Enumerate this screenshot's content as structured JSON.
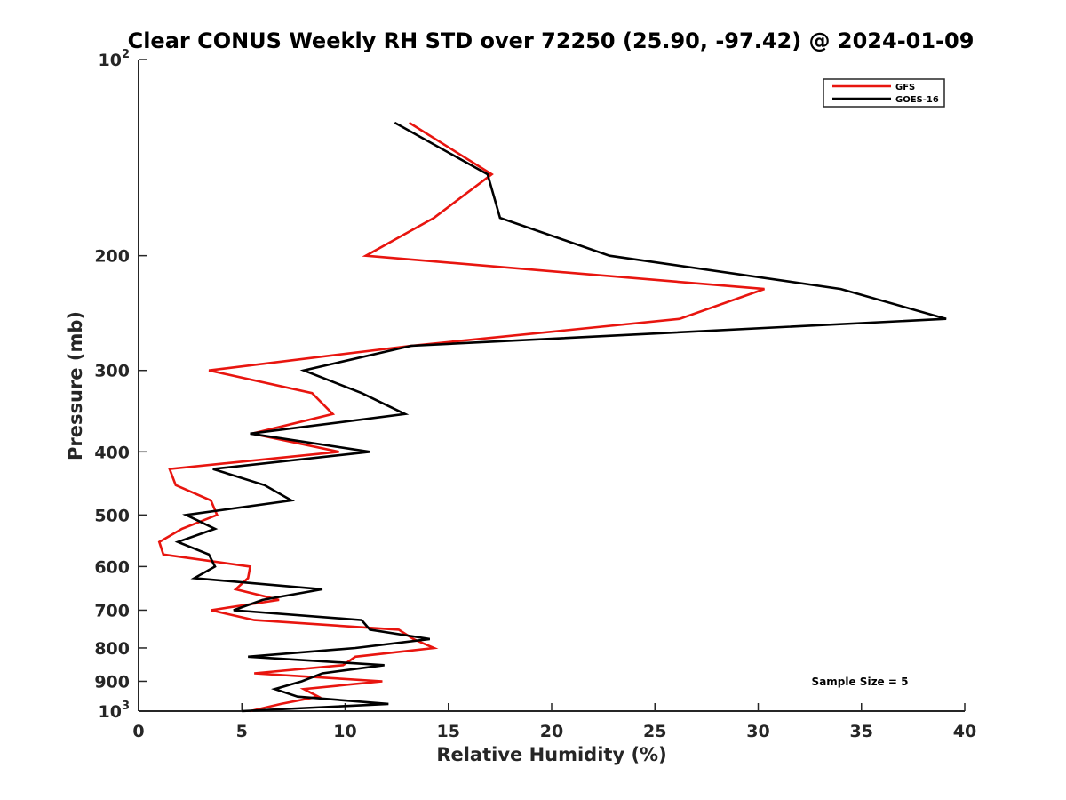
{
  "chart_data": {
    "type": "line",
    "title": "Clear CONUS Weekly RH STD over 72250 (25.90, -97.42) @ 2024-01-09",
    "xlabel": "Relative Humidity (%)",
    "ylabel": "Pressure (mb)",
    "xlim": [
      0,
      40
    ],
    "ylim": [
      100,
      1000
    ],
    "y_scale": "log",
    "y_reversed": true,
    "grid": false,
    "legend_position": "top-right",
    "annotation": "Sample Size = 5",
    "xticks": [
      "0",
      "5",
      "10",
      "15",
      "20",
      "25",
      "30",
      "35",
      "40"
    ],
    "yticks": [
      {
        "value": 100,
        "base": "10",
        "exp": "2"
      },
      {
        "value": 200,
        "label": "200"
      },
      {
        "value": 300,
        "label": "300"
      },
      {
        "value": 400,
        "label": "400"
      },
      {
        "value": 500,
        "label": "500"
      },
      {
        "value": 600,
        "label": "600"
      },
      {
        "value": 700,
        "label": "700"
      },
      {
        "value": 800,
        "label": "800"
      },
      {
        "value": 900,
        "label": "900"
      },
      {
        "value": 1000,
        "base": "10",
        "exp": "3"
      }
    ],
    "series": [
      {
        "name": "GFS",
        "color": "#e8150f",
        "points": [
          [
            13.1,
            125
          ],
          [
            17.1,
            150
          ],
          [
            14.3,
            175
          ],
          [
            11.0,
            200
          ],
          [
            30.3,
            225
          ],
          [
            26.2,
            250
          ],
          [
            13.2,
            275
          ],
          [
            3.4,
            300
          ],
          [
            8.4,
            325
          ],
          [
            9.4,
            350
          ],
          [
            5.5,
            375
          ],
          [
            9.7,
            400
          ],
          [
            1.5,
            425
          ],
          [
            1.8,
            450
          ],
          [
            3.5,
            475
          ],
          [
            3.8,
            500
          ],
          [
            2.1,
            525
          ],
          [
            1.0,
            550
          ],
          [
            1.2,
            575
          ],
          [
            5.4,
            600
          ],
          [
            5.3,
            625
          ],
          [
            4.7,
            650
          ],
          [
            6.8,
            675
          ],
          [
            3.5,
            700
          ],
          [
            5.6,
            725
          ],
          [
            12.6,
            750
          ],
          [
            13.3,
            775
          ],
          [
            14.3,
            800
          ],
          [
            10.5,
            825
          ],
          [
            9.9,
            850
          ],
          [
            5.6,
            875
          ],
          [
            11.8,
            900
          ],
          [
            8.0,
            925
          ],
          [
            8.7,
            950
          ],
          [
            6.9,
            975
          ],
          [
            5.4,
            1000
          ]
        ]
      },
      {
        "name": "GOES-16",
        "color": "#000000",
        "points": [
          [
            12.4,
            125
          ],
          [
            16.9,
            150
          ],
          [
            17.5,
            175
          ],
          [
            22.8,
            200
          ],
          [
            34.0,
            225
          ],
          [
            39.1,
            250
          ],
          [
            13.2,
            275
          ],
          [
            8.0,
            300
          ],
          [
            10.8,
            325
          ],
          [
            12.9,
            350
          ],
          [
            5.4,
            375
          ],
          [
            11.2,
            400
          ],
          [
            3.6,
            425
          ],
          [
            6.1,
            450
          ],
          [
            7.4,
            475
          ],
          [
            2.3,
            500
          ],
          [
            3.7,
            525
          ],
          [
            1.9,
            550
          ],
          [
            3.4,
            575
          ],
          [
            3.7,
            600
          ],
          [
            2.7,
            625
          ],
          [
            8.9,
            650
          ],
          [
            6.0,
            675
          ],
          [
            4.6,
            700
          ],
          [
            10.8,
            725
          ],
          [
            11.2,
            750
          ],
          [
            14.1,
            775
          ],
          [
            10.5,
            800
          ],
          [
            5.3,
            825
          ],
          [
            11.9,
            850
          ],
          [
            8.9,
            875
          ],
          [
            7.9,
            900
          ],
          [
            6.6,
            925
          ],
          [
            7.7,
            950
          ],
          [
            12.1,
            975
          ],
          [
            5.0,
            1000
          ]
        ]
      }
    ]
  }
}
